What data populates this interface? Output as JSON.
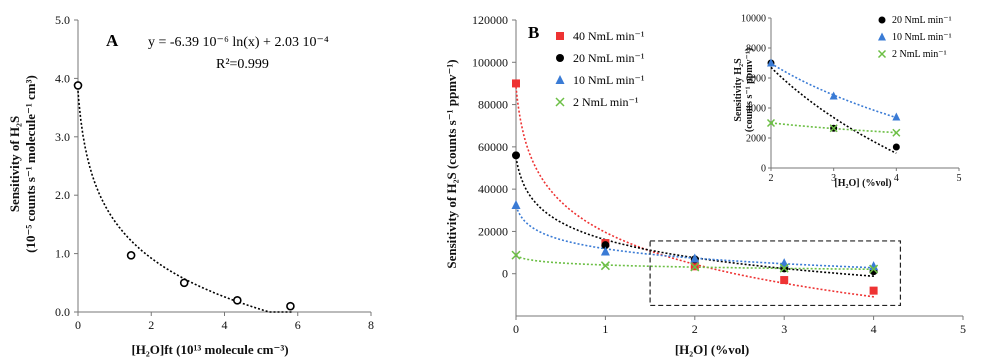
{
  "chart_data": [
    {
      "panel": "A",
      "type": "scatter",
      "fit": "logarithmic",
      "equation": "y = -6.39 10⁻⁶ ln(x) + 2.03 10⁻⁴",
      "r_squared": "R²=0.999",
      "xlabel": "[H₂O]ft (10¹³ molecule cm⁻³)",
      "ylabel_line1": "Sensitivity of H₂S",
      "ylabel_line2": "(10⁻⁵ counts s⁻¹ molecule⁻¹ cm³)",
      "xlim": [
        0,
        8
      ],
      "ylim": [
        0,
        5
      ],
      "xticks": [
        "0",
        "2",
        "4",
        "6",
        "8"
      ],
      "yticks": [
        "0.0",
        "1.0",
        "2.0",
        "3.0",
        "4.0",
        "5.0"
      ],
      "points": [
        {
          "x": 0.0,
          "y": 3.88
        },
        {
          "x": 1.45,
          "y": 0.97
        },
        {
          "x": 2.9,
          "y": 0.5
        },
        {
          "x": 4.35,
          "y": 0.2
        },
        {
          "x": 5.8,
          "y": 0.1
        }
      ],
      "marker_color": "#000000",
      "grid": false
    },
    {
      "panel": "B",
      "type": "scatter",
      "fit": "logarithmic",
      "xlabel": "[H₂O] (%vol)",
      "ylabel": "Sensitivity of H₂S (counts s⁻¹ ppmv⁻¹)",
      "xlim": [
        0,
        5
      ],
      "ylim": [
        -20000,
        120000
      ],
      "xticks": [
        "0",
        "1",
        "2",
        "3",
        "4",
        "5"
      ],
      "yticks": [
        "0",
        "20000",
        "40000",
        "60000",
        "80000",
        "100000",
        "120000"
      ],
      "legend_position": "top-left",
      "series": [
        {
          "name": "40 NmL min⁻¹",
          "marker": "square",
          "color": "#ee3333",
          "x": [
            0,
            1,
            2,
            3,
            4
          ],
          "y": [
            90000,
            14500,
            3500,
            -3000,
            -8000
          ]
        },
        {
          "name": "20 NmL min⁻¹",
          "marker": "circle",
          "color": "#000000",
          "x": [
            0,
            1,
            2,
            3,
            4
          ],
          "y": [
            56000,
            13500,
            6800,
            2500,
            1200
          ]
        },
        {
          "name": "10 NmL min⁻¹",
          "marker": "triangle",
          "color": "#3a7bd5",
          "x": [
            0,
            1,
            2,
            3,
            4
          ],
          "y": [
            32500,
            10500,
            7200,
            5000,
            3600
          ]
        },
        {
          "name": "2 NmL min⁻¹",
          "marker": "x",
          "color": "#6cbf45",
          "x": [
            0,
            1,
            2,
            3,
            4
          ],
          "y": [
            8800,
            3800,
            3200,
            2600,
            2200
          ]
        }
      ],
      "zoom_box": {
        "x": [
          1.5,
          4.3
        ],
        "y": [
          -15000,
          15500
        ]
      },
      "grid": false
    },
    {
      "panel": "B-inset",
      "type": "scatter",
      "fit": "logarithmic",
      "xlabel": "[H₂O] (%vol)",
      "ylabel_line1": "Sensitivity H₂S",
      "ylabel_line2": "(counts s⁻¹ ppmv⁻¹)",
      "xlim": [
        2,
        5
      ],
      "ylim": [
        0,
        10000
      ],
      "xticks": [
        "2",
        "3",
        "4",
        "5"
      ],
      "yticks": [
        "0",
        "2000",
        "4000",
        "6000",
        "8000",
        "10000"
      ],
      "legend_position": "top-right",
      "series": [
        {
          "name": "20 NmL min⁻¹",
          "marker": "circle",
          "color": "#000000",
          "x": [
            2,
            3,
            4
          ],
          "y": [
            7000,
            2650,
            1400
          ]
        },
        {
          "name": "10 NmL min⁻¹",
          "marker": "triangle",
          "color": "#3a7bd5",
          "x": [
            2,
            3,
            4
          ],
          "y": [
            7000,
            4800,
            3400
          ]
        },
        {
          "name": "2 NmL min⁻¹",
          "marker": "x",
          "color": "#6cbf45",
          "x": [
            2,
            3,
            4
          ],
          "y": [
            3000,
            2650,
            2350
          ]
        }
      ],
      "grid": false
    }
  ]
}
